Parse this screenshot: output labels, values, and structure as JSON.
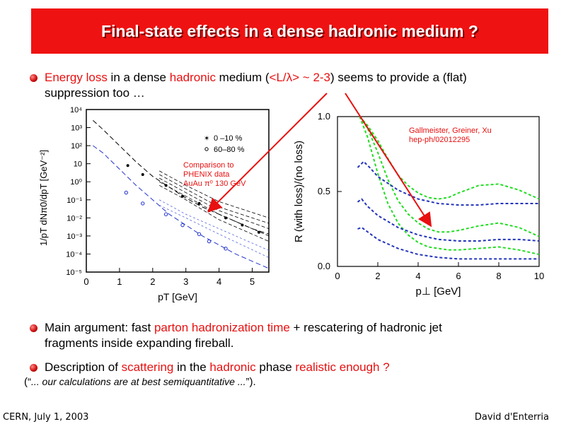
{
  "slide": {
    "title": "Final-state effects in a dense hadronic medium ?",
    "bullet1": {
      "p1": "Energy loss",
      "p2": " in a dense ",
      "p3": "hadronic",
      "p4": " medium (",
      "p5": "<L/λ> ~ 2-3",
      "p6": ") seems to provide a (flat)",
      "line2": "suppression too …"
    },
    "bullet2": {
      "p1": "Main argument: fast ",
      "p2": "parton hadronization time",
      "p3": " + rescatering of hadronic jet",
      "line2": "fragments inside expanding fireball."
    },
    "bullet3": {
      "p1": "Description of ",
      "p2": "scattering",
      "p3": " in the ",
      "p4": "hadronic",
      "p5": " phase ",
      "p6": "realistic enough ?"
    },
    "quote": {
      "open": "(“",
      "text": "... our calculations are at best semiquantitative ...",
      "close": "”)."
    },
    "footer_left": "CERN, July 1, 2003",
    "footer_right": "David d'Enterria",
    "accent_color": "#ef1212"
  },
  "chart_data": [
    {
      "type": "line",
      "yscale": "log",
      "x_ticks": [
        "0",
        "1",
        "2",
        "3",
        "4",
        "5"
      ],
      "y_ticks": [
        "10⁴",
        "10³",
        "10²",
        "10",
        "10⁰",
        "10⁻¹",
        "10⁻²",
        "10⁻³",
        "10⁻⁴",
        "10⁻⁵"
      ],
      "xlabel": "pT [GeV]",
      "ylabel": "1/pT dNπ0/dpT [GeV⁻²]",
      "xlim": [
        0,
        5.5
      ],
      "ylim": [
        -5,
        4
      ],
      "legend": [
        {
          "marker": "filled-star",
          "label": "0 –10 %"
        },
        {
          "marker": "open-circle",
          "label": "60–80 %"
        }
      ],
      "annotation": [
        "Comparison to",
        "PHENIX data",
        "AuAu π⁰ 130 GeV"
      ],
      "series": [
        {
          "style": "black-dashed",
          "x": [
            0.2,
            0.5,
            1.0,
            1.5,
            2.0,
            2.5,
            3.0,
            3.5,
            4.0,
            4.5,
            5.0,
            5.5
          ],
          "y": [
            3.4,
            2.9,
            2.0,
            1.1,
            0.3,
            -0.3,
            -0.9,
            -1.4,
            -1.8,
            -2.2,
            -2.6,
            -2.9
          ]
        },
        {
          "style": "blue-dashed",
          "x": [
            0.2,
            0.5,
            1.0,
            1.5,
            2.0,
            2.5,
            3.0,
            3.5,
            4.0,
            4.5,
            5.0,
            5.5
          ],
          "y": [
            2.0,
            1.6,
            0.7,
            -0.2,
            -1.0,
            -1.8,
            -2.4,
            -3.0,
            -3.5,
            -4.0,
            -4.4,
            -4.8
          ]
        },
        {
          "style": "black-band",
          "x": [
            2.2,
            3.0,
            4.0,
            5.5
          ],
          "y": [
            -0.2,
            -1.0,
            -2.1,
            -3.3
          ]
        },
        {
          "style": "black-band",
          "x": [
            2.2,
            3.0,
            4.0,
            5.5
          ],
          "y": [
            0.0,
            -0.8,
            -1.8,
            -3.0
          ]
        },
        {
          "style": "black-band",
          "x": [
            2.2,
            3.0,
            4.0,
            5.5
          ],
          "y": [
            0.2,
            -0.6,
            -1.6,
            -2.6
          ]
        },
        {
          "style": "black-band",
          "x": [
            2.2,
            3.0,
            4.0,
            5.5
          ],
          "y": [
            0.4,
            -0.4,
            -1.4,
            -2.3
          ]
        },
        {
          "style": "black-band",
          "x": [
            2.2,
            3.0,
            4.0,
            5.5
          ],
          "y": [
            0.6,
            -0.2,
            -1.1,
            -2.0
          ]
        },
        {
          "style": "blue-band",
          "x": [
            2.2,
            3.0,
            4.0,
            5.5
          ],
          "y": [
            -1.3,
            -2.0,
            -2.9,
            -4.2
          ]
        },
        {
          "style": "blue-band",
          "x": [
            2.2,
            3.0,
            4.0,
            5.5
          ],
          "y": [
            -1.0,
            -1.8,
            -2.6,
            -3.8
          ]
        }
      ],
      "points_central": {
        "x": [
          1.25,
          1.7,
          2.4,
          2.9,
          3.4,
          3.7,
          4.2,
          4.7,
          5.2
        ],
        "y": [
          0.9,
          0.4,
          -0.2,
          -0.8,
          -1.2,
          -1.6,
          -2.0,
          -2.4,
          -2.8
        ]
      },
      "points_peripheral": {
        "x": [
          1.2,
          1.7,
          2.4,
          2.9,
          3.4,
          3.7,
          4.2
        ],
        "y": [
          -0.6,
          -1.2,
          -1.8,
          -2.4,
          -2.9,
          -3.3,
          -3.7
        ]
      }
    },
    {
      "type": "line",
      "xlabel": "p⊥ [GeV]",
      "ylabel": "R (with loss)/(no loss)",
      "x_ticks": [
        "0",
        "2",
        "4",
        "6",
        "8",
        "10"
      ],
      "y_ticks": [
        "0.0",
        "0.5",
        "1.0"
      ],
      "xlim": [
        0,
        10
      ],
      "ylim": [
        0,
        1.0
      ],
      "annotation": [
        "Gallmeister, Greiner, Xu",
        "hep-ph/02012295"
      ],
      "series": [
        {
          "color": "#22dd22",
          "x": [
            1.1,
            1.5,
            2,
            2.5,
            3,
            3.5,
            4,
            4.5,
            5,
            5.5,
            6,
            7,
            8,
            9,
            10
          ],
          "y": [
            1.0,
            0.94,
            0.84,
            0.72,
            0.61,
            0.54,
            0.49,
            0.46,
            0.45,
            0.46,
            0.49,
            0.54,
            0.55,
            0.51,
            0.45
          ]
        },
        {
          "color": "#22dd22",
          "x": [
            1.1,
            1.5,
            2,
            2.5,
            3,
            3.5,
            4,
            4.5,
            5,
            5.5,
            6,
            7,
            8,
            9,
            10
          ],
          "y": [
            1.0,
            0.92,
            0.76,
            0.58,
            0.44,
            0.35,
            0.29,
            0.25,
            0.23,
            0.23,
            0.24,
            0.27,
            0.29,
            0.26,
            0.2
          ]
        },
        {
          "color": "#22dd22",
          "x": [
            1.1,
            1.5,
            2,
            2.5,
            3,
            3.5,
            4,
            4.5,
            5,
            5.5,
            6,
            7,
            8,
            9,
            10
          ],
          "y": [
            1.0,
            0.86,
            0.62,
            0.42,
            0.29,
            0.21,
            0.16,
            0.13,
            0.12,
            0.11,
            0.11,
            0.12,
            0.13,
            0.11,
            0.08
          ]
        },
        {
          "color": "#2233bb",
          "x": [
            1.0,
            1.3,
            1.6,
            2,
            3,
            4,
            5,
            6,
            7,
            8,
            9,
            10
          ],
          "y": [
            0.66,
            0.7,
            0.66,
            0.6,
            0.51,
            0.45,
            0.42,
            0.41,
            0.41,
            0.42,
            0.42,
            0.42
          ]
        },
        {
          "color": "#2233bb",
          "x": [
            1.0,
            1.2,
            1.5,
            2,
            3,
            4,
            5,
            6,
            7,
            8,
            9,
            10
          ],
          "y": [
            0.43,
            0.45,
            0.4,
            0.34,
            0.26,
            0.21,
            0.18,
            0.17,
            0.17,
            0.18,
            0.18,
            0.17
          ]
        },
        {
          "color": "#2233bb",
          "x": [
            1.0,
            1.2,
            1.5,
            2,
            3,
            4,
            5,
            6,
            7,
            8,
            9,
            10
          ],
          "y": [
            0.25,
            0.26,
            0.23,
            0.18,
            0.12,
            0.08,
            0.06,
            0.05,
            0.05,
            0.05,
            0.05,
            0.05
          ]
        }
      ]
    }
  ]
}
